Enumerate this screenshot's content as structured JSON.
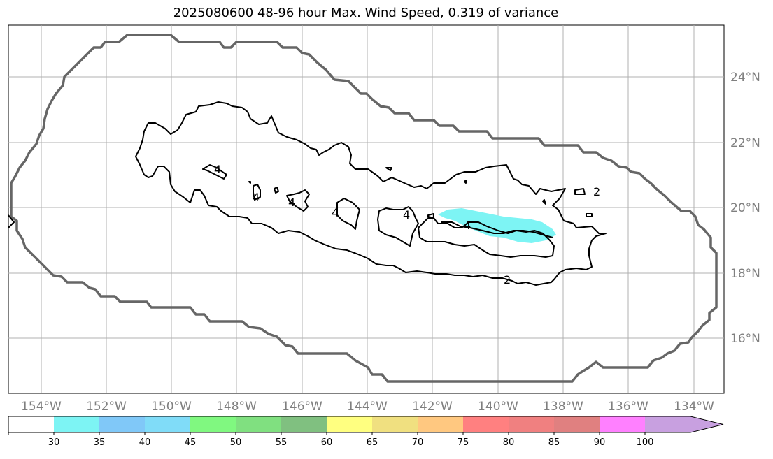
{
  "title": "2025080600 48-96 hour Max. Wind Speed, 0.319 of variance",
  "map": {
    "lon_labels": [
      "154°W",
      "152°W",
      "150°W",
      "148°W",
      "146°W",
      "144°W",
      "142°W",
      "140°W",
      "138°W",
      "136°W",
      "134°W"
    ],
    "lat_labels": [
      "24°N",
      "22°N",
      "20°N",
      "18°N",
      "16°N"
    ],
    "contour_labels": [
      "4",
      "4",
      "4",
      "4",
      "4",
      "4",
      "2",
      "2"
    ],
    "colors": {
      "outline": "#666666",
      "contour": "#000000",
      "shading_30_35": "#7df4f4",
      "grid": "#b0b0b0"
    }
  },
  "colorbar": {
    "labels": [
      "30",
      "35",
      "40",
      "45",
      "50",
      "55",
      "60",
      "65",
      "70",
      "75",
      "80",
      "85",
      "90",
      "100"
    ],
    "colors": [
      "#ffffff",
      "#7df4f4",
      "#80c8f8",
      "#80dcf8",
      "#80f880",
      "#80e080",
      "#80c080",
      "#ffff80",
      "#f0e080",
      "#ffc880",
      "#ff8080",
      "#f08080",
      "#e08080",
      "#ff80ff",
      "#c8a0e0"
    ]
  }
}
